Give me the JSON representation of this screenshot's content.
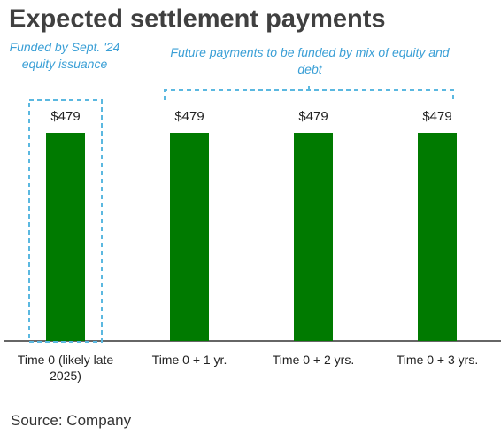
{
  "chart_data": {
    "type": "bar",
    "title": "Expected settlement payments",
    "categories": [
      "Time 0 (likely late 2025)",
      "Time 0 + 1 yr.",
      "Time 0 + 2 yrs.",
      "Time 0 + 3 yrs."
    ],
    "values": [
      479,
      479,
      479,
      479
    ],
    "value_labels": [
      "$479",
      "$479",
      "$479",
      "$479"
    ],
    "color": "#007a00",
    "annotations": [
      "Funded by Sept. '24 equity issuance",
      "Future payments to be funded by mix of equity and debt"
    ],
    "source": "Source: Company"
  }
}
